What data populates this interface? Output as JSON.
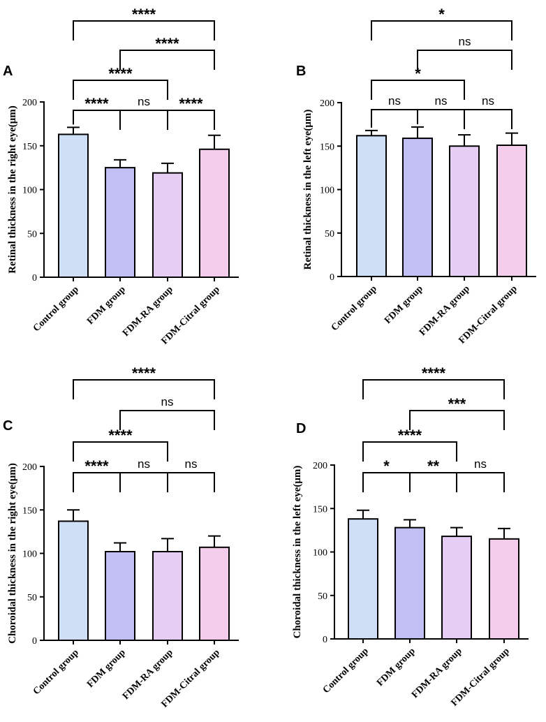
{
  "figure": {
    "colors": {
      "control": "#cfe0f6",
      "fdm": "#c2bff4",
      "fdm_ra": "#e6cdf4",
      "fdm_citral": "#f5cdec",
      "stroke": "#000000"
    }
  },
  "chart_data": [
    {
      "panel": "A",
      "type": "bar",
      "ylabel": "Retinal thickness in the right eye(μm)",
      "categories": [
        "Control group",
        "FDM group",
        "FDM-RA group",
        "FDM-Citral group"
      ],
      "values": [
        163,
        125,
        119,
        146
      ],
      "errors": [
        8,
        9,
        11,
        16
      ],
      "ylim": [
        0,
        200
      ],
      "yticks": [
        0,
        50,
        100,
        150,
        200
      ],
      "comparisons": [
        {
          "from": 0,
          "to": 1,
          "label": "****"
        },
        {
          "from": 1,
          "to": 2,
          "label": "ns"
        },
        {
          "from": 2,
          "to": 3,
          "label": "****"
        },
        {
          "from": 0,
          "to": 2,
          "label": "****"
        },
        {
          "from": 1,
          "to": 3,
          "label": "****"
        },
        {
          "from": 0,
          "to": 3,
          "label": "****"
        }
      ]
    },
    {
      "panel": "B",
      "type": "bar",
      "ylabel": "Retinal thickness in the left eye(μm)",
      "categories": [
        "Control group",
        "FDM group",
        "FDM-RA group",
        "FDM-Citral group"
      ],
      "values": [
        162,
        159,
        150,
        151
      ],
      "errors": [
        6,
        13,
        13,
        14
      ],
      "ylim": [
        0,
        200
      ],
      "yticks": [
        0,
        50,
        100,
        150,
        200
      ],
      "comparisons": [
        {
          "from": 0,
          "to": 1,
          "label": "ns"
        },
        {
          "from": 1,
          "to": 2,
          "label": "ns"
        },
        {
          "from": 2,
          "to": 3,
          "label": "ns"
        },
        {
          "from": 0,
          "to": 2,
          "label": "*"
        },
        {
          "from": 1,
          "to": 3,
          "label": "ns"
        },
        {
          "from": 0,
          "to": 3,
          "label": "*"
        }
      ]
    },
    {
      "panel": "C",
      "type": "bar",
      "ylabel": "Choroidal thickness in the right eye(μm)",
      "categories": [
        "Control group",
        "FDM group",
        "FDM-RA group",
        "FDM-Citral group"
      ],
      "values": [
        137,
        102,
        102,
        107
      ],
      "errors": [
        13,
        10,
        15,
        13
      ],
      "ylim": [
        0,
        200
      ],
      "yticks": [
        0,
        50,
        100,
        150,
        200
      ],
      "comparisons": [
        {
          "from": 0,
          "to": 1,
          "label": "****"
        },
        {
          "from": 1,
          "to": 2,
          "label": "ns"
        },
        {
          "from": 2,
          "to": 3,
          "label": "ns"
        },
        {
          "from": 0,
          "to": 2,
          "label": "****"
        },
        {
          "from": 1,
          "to": 3,
          "label": "ns"
        },
        {
          "from": 0,
          "to": 3,
          "label": "****"
        }
      ]
    },
    {
      "panel": "D",
      "type": "bar",
      "ylabel": "Choroidal thickness in the left eye(μm)",
      "categories": [
        "Control group",
        "FDM group",
        "FDM-RA group",
        "FDM-Citral group"
      ],
      "values": [
        138,
        128,
        118,
        115
      ],
      "errors": [
        10,
        9,
        10,
        12
      ],
      "ylim": [
        0,
        200
      ],
      "yticks": [
        0,
        50,
        100,
        150,
        200
      ],
      "comparisons": [
        {
          "from": 0,
          "to": 1,
          "label": "*"
        },
        {
          "from": 1,
          "to": 2,
          "label": "**"
        },
        {
          "from": 2,
          "to": 3,
          "label": "ns"
        },
        {
          "from": 0,
          "to": 2,
          "label": "****"
        },
        {
          "from": 1,
          "to": 3,
          "label": "***"
        },
        {
          "from": 0,
          "to": 3,
          "label": "****"
        }
      ]
    }
  ]
}
